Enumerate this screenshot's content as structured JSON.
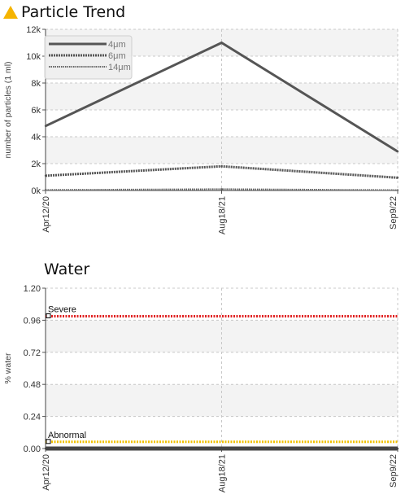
{
  "chart_data": [
    {
      "type": "line",
      "title": "Particle Trend",
      "title_icon": "warning-triangle-icon",
      "ylabel": "number of particles (1 ml)",
      "categories": [
        "Apr12/20",
        "Aug18/21",
        "Sep9/22"
      ],
      "yticks": [
        "0k",
        "2k",
        "4k",
        "6k",
        "8k",
        "10k",
        "12k"
      ],
      "ylim": [
        0,
        12000
      ],
      "grid": true,
      "legend": "top-left",
      "series": [
        {
          "name": "4μm",
          "values": [
            4800,
            11000,
            2900
          ],
          "color": "#555555",
          "style": "solid"
        },
        {
          "name": "6μm",
          "values": [
            1100,
            1800,
            950
          ],
          "color": "#555555",
          "style": "dashed"
        },
        {
          "name": "14μm",
          "values": [
            40,
            100,
            25
          ],
          "color": "#666666",
          "style": "dotted"
        }
      ]
    },
    {
      "type": "line",
      "title": "Water",
      "ylabel": "% water",
      "categories": [
        "Apr12/20",
        "Aug18/21",
        "Sep9/22"
      ],
      "yticks": [
        "0.00",
        "0.24",
        "0.48",
        "0.72",
        "0.96",
        "1.20"
      ],
      "ylim": [
        0,
        1.2
      ],
      "grid": true,
      "series": [
        {
          "values": [
            0.0,
            0.0,
            0.0
          ],
          "color": "#444444",
          "style": "solid"
        }
      ],
      "thresholds": [
        {
          "name": "Severe",
          "value": 0.99,
          "color": "#e02020"
        },
        {
          "name": "Abnormal",
          "value": 0.05,
          "color": "#f0c000"
        }
      ]
    }
  ]
}
